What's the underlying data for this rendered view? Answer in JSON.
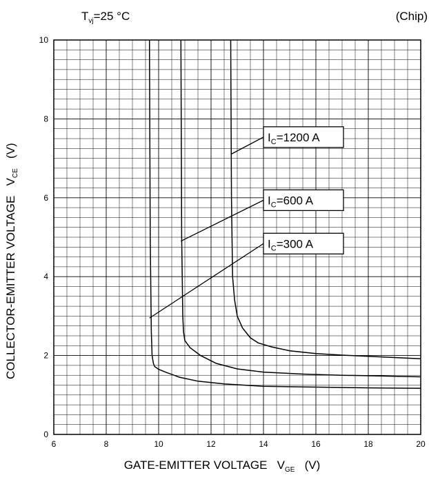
{
  "header": {
    "condition_main": "T",
    "condition_sub": "vj",
    "condition_rest": "=25 °C",
    "scope": "(Chip)"
  },
  "chart_data": {
    "type": "line",
    "title": "",
    "xlabel": "GATE-EMITTER VOLTAGE",
    "xlabel_symbol": "V",
    "xlabel_symbol_sub": "GE",
    "xlabel_unit": "(V)",
    "ylabel": "COLLECTOR-EMITTER VOLTAGE",
    "ylabel_symbol": "V",
    "ylabel_symbol_sub": "CE",
    "ylabel_unit": "(V)",
    "xlim": [
      6,
      20
    ],
    "ylim": [
      0,
      10
    ],
    "xticks": [
      6,
      8,
      10,
      12,
      14,
      16,
      18,
      20
    ],
    "yticks": [
      0,
      2,
      4,
      6,
      8,
      10
    ],
    "grid": true,
    "series": [
      {
        "name": "IC=300 A",
        "label_main": "I",
        "label_sub": "C",
        "label_rest": "=300 A",
        "x": [
          9.65,
          9.68,
          9.72,
          9.75,
          9.8,
          9.85,
          10.0,
          10.3,
          10.8,
          11.5,
          12.5,
          14.0,
          16.0,
          18.0,
          20.0
        ],
        "y": [
          10.0,
          5.0,
          2.6,
          2.0,
          1.8,
          1.72,
          1.65,
          1.57,
          1.45,
          1.35,
          1.28,
          1.22,
          1.2,
          1.18,
          1.17
        ]
      },
      {
        "name": "IC=600 A",
        "label_main": "I",
        "label_sub": "C",
        "label_rest": "=600 A",
        "x": [
          10.85,
          10.88,
          10.92,
          10.95,
          11.0,
          11.2,
          11.6,
          12.2,
          13.0,
          14.0,
          15.5,
          17.0,
          18.5,
          20.0
        ],
        "y": [
          10.0,
          5.0,
          3.0,
          2.6,
          2.38,
          2.2,
          2.0,
          1.8,
          1.66,
          1.58,
          1.53,
          1.5,
          1.48,
          1.46
        ]
      },
      {
        "name": "IC=1200 A",
        "label_main": "I",
        "label_sub": "C",
        "label_rest": "=1200 A",
        "x": [
          12.75,
          12.78,
          12.82,
          12.9,
          13.0,
          13.2,
          13.5,
          13.8,
          14.3,
          15.0,
          16.0,
          17.0,
          18.0,
          19.0,
          20.0
        ],
        "y": [
          10.0,
          6.0,
          4.0,
          3.4,
          3.0,
          2.7,
          2.45,
          2.32,
          2.22,
          2.12,
          2.05,
          2.01,
          1.98,
          1.95,
          1.92
        ]
      }
    ],
    "annotations": [
      {
        "series": 2,
        "label_x": 14.0,
        "label_y": 7.8,
        "point_x": 12.75,
        "point_y": 7.1
      },
      {
        "series": 1,
        "label_x": 14.0,
        "label_y": 6.2,
        "point_x": 10.85,
        "point_y": 4.9
      },
      {
        "series": 0,
        "label_x": 14.0,
        "label_y": 5.1,
        "point_x": 9.65,
        "point_y": 2.95
      }
    ]
  }
}
